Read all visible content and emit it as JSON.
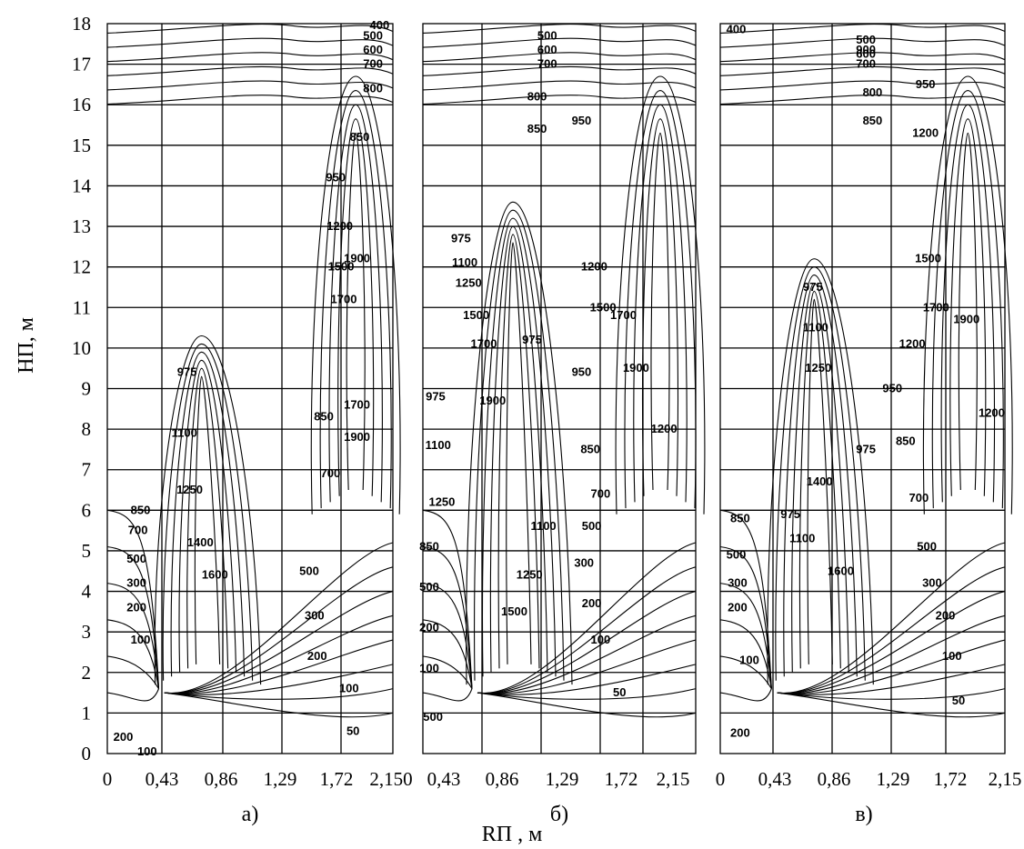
{
  "chart_data": {
    "type": "contour",
    "ylabel": "HП, м",
    "xlabel": "RП , м",
    "y_ticks": [
      "0",
      "1",
      "2",
      "3",
      "4",
      "5",
      "6",
      "7",
      "8",
      "9",
      "10",
      "11",
      "12",
      "13",
      "14",
      "15",
      "16",
      "17",
      "18"
    ],
    "ylim": [
      0,
      18
    ],
    "xlim": [
      0,
      2.15
    ],
    "panels": [
      {
        "label": "а)",
        "x_ticks": [
          "0",
          "0,43",
          "0,86",
          "1,29",
          "1,72",
          "2,150"
        ],
        "contour_labels": [
          {
            "text": "400",
            "x": 2.05,
            "y": 17.95
          },
          {
            "text": "500",
            "x": 2.0,
            "y": 17.7
          },
          {
            "text": "600",
            "x": 2.0,
            "y": 17.35
          },
          {
            "text": "700",
            "x": 2.0,
            "y": 17.0
          },
          {
            "text": "800",
            "x": 2.0,
            "y": 16.4
          },
          {
            "text": "850",
            "x": 1.9,
            "y": 15.2
          },
          {
            "text": "950",
            "x": 1.72,
            "y": 14.2
          },
          {
            "text": "1200",
            "x": 1.75,
            "y": 13.0
          },
          {
            "text": "1500",
            "x": 1.76,
            "y": 12.0
          },
          {
            "text": "1700",
            "x": 1.78,
            "y": 11.2
          },
          {
            "text": "1900",
            "x": 1.88,
            "y": 12.2
          },
          {
            "text": "1700",
            "x": 1.88,
            "y": 8.6
          },
          {
            "text": "1900",
            "x": 1.88,
            "y": 7.8
          },
          {
            "text": "850",
            "x": 1.63,
            "y": 8.3
          },
          {
            "text": "700",
            "x": 1.68,
            "y": 6.9
          },
          {
            "text": "500",
            "x": 1.52,
            "y": 4.5
          },
          {
            "text": "300",
            "x": 1.56,
            "y": 3.4
          },
          {
            "text": "200",
            "x": 1.58,
            "y": 2.4
          },
          {
            "text": "100",
            "x": 1.82,
            "y": 1.6
          },
          {
            "text": "50",
            "x": 1.85,
            "y": 0.55
          },
          {
            "text": "975",
            "x": 0.6,
            "y": 9.4
          },
          {
            "text": "1100",
            "x": 0.58,
            "y": 7.9
          },
          {
            "text": "1250",
            "x": 0.62,
            "y": 6.5
          },
          {
            "text": "1400",
            "x": 0.7,
            "y": 5.2
          },
          {
            "text": "1600",
            "x": 0.81,
            "y": 4.4
          },
          {
            "text": "850",
            "x": 0.25,
            "y": 6.0
          },
          {
            "text": "700",
            "x": 0.23,
            "y": 5.5
          },
          {
            "text": "500",
            "x": 0.22,
            "y": 4.8
          },
          {
            "text": "300",
            "x": 0.22,
            "y": 4.2
          },
          {
            "text": "200",
            "x": 0.22,
            "y": 3.6
          },
          {
            "text": "100",
            "x": 0.25,
            "y": 2.8
          },
          {
            "text": "200",
            "x": 0.12,
            "y": 0.4
          },
          {
            "text": "100",
            "x": 0.3,
            "y": 0.05
          }
        ]
      },
      {
        "label": "б)",
        "x_ticks": [
          "0,43",
          "0,86",
          "1,29",
          "1,72",
          "2,15"
        ],
        "contour_labels": [
          {
            "text": "500",
            "x": 0.98,
            "y": 17.7
          },
          {
            "text": "600",
            "x": 0.98,
            "y": 17.35
          },
          {
            "text": "700",
            "x": 0.98,
            "y": 17.0
          },
          {
            "text": "800",
            "x": 0.9,
            "y": 16.2
          },
          {
            "text": "850",
            "x": 0.9,
            "y": 15.4
          },
          {
            "text": "950",
            "x": 1.25,
            "y": 15.6
          },
          {
            "text": "975",
            "x": 0.3,
            "y": 12.7
          },
          {
            "text": "1100",
            "x": 0.33,
            "y": 12.1
          },
          {
            "text": "1250",
            "x": 0.36,
            "y": 11.6
          },
          {
            "text": "1500",
            "x": 0.42,
            "y": 10.8
          },
          {
            "text": "1700",
            "x": 0.48,
            "y": 10.1
          },
          {
            "text": "1900",
            "x": 0.55,
            "y": 8.7
          },
          {
            "text": "975",
            "x": 0.86,
            "y": 10.2
          },
          {
            "text": "975",
            "x": 0.1,
            "y": 8.8
          },
          {
            "text": "1100",
            "x": 0.12,
            "y": 7.6
          },
          {
            "text": "1250",
            "x": 0.15,
            "y": 6.2
          },
          {
            "text": "1100",
            "x": 0.95,
            "y": 5.6
          },
          {
            "text": "1250",
            "x": 0.84,
            "y": 4.4
          },
          {
            "text": "1500",
            "x": 0.72,
            "y": 3.5
          },
          {
            "text": "1200",
            "x": 1.35,
            "y": 12.0
          },
          {
            "text": "1500",
            "x": 1.42,
            "y": 11.0
          },
          {
            "text": "1700",
            "x": 1.58,
            "y": 10.8
          },
          {
            "text": "1900",
            "x": 1.68,
            "y": 9.5
          },
          {
            "text": "950",
            "x": 1.25,
            "y": 9.4
          },
          {
            "text": "1200",
            "x": 1.9,
            "y": 8.0
          },
          {
            "text": "850",
            "x": 1.32,
            "y": 7.5
          },
          {
            "text": "700",
            "x": 1.4,
            "y": 6.4
          },
          {
            "text": "500",
            "x": 1.33,
            "y": 5.6
          },
          {
            "text": "300",
            "x": 1.27,
            "y": 4.7
          },
          {
            "text": "200",
            "x": 1.33,
            "y": 3.7
          },
          {
            "text": "100",
            "x": 1.4,
            "y": 2.8
          },
          {
            "text": "50",
            "x": 1.55,
            "y": 1.5
          },
          {
            "text": "850",
            "x": 0.05,
            "y": 5.1
          },
          {
            "text": "500",
            "x": 0.05,
            "y": 4.1
          },
          {
            "text": "200",
            "x": 0.05,
            "y": 3.1
          },
          {
            "text": "100",
            "x": 0.05,
            "y": 2.1
          },
          {
            "text": "500",
            "x": 0.08,
            "y": 0.9
          }
        ]
      },
      {
        "label": "в)",
        "x_ticks": [
          "0",
          "0,43",
          "0,86",
          "1,29",
          "1,72",
          "2,15"
        ],
        "contour_labels": [
          {
            "text": "400",
            "x": 0.12,
            "y": 17.85
          },
          {
            "text": "500",
            "x": 1.1,
            "y": 17.6
          },
          {
            "text": "600",
            "x": 1.1,
            "y": 17.25
          },
          {
            "text": "900",
            "x": 1.1,
            "y": 17.35
          },
          {
            "text": "700",
            "x": 1.1,
            "y": 17.0
          },
          {
            "text": "800",
            "x": 1.15,
            "y": 16.3
          },
          {
            "text": "850",
            "x": 1.15,
            "y": 15.6
          },
          {
            "text": "950",
            "x": 1.55,
            "y": 16.5
          },
          {
            "text": "1200",
            "x": 1.55,
            "y": 15.3
          },
          {
            "text": "975",
            "x": 0.7,
            "y": 11.5
          },
          {
            "text": "1100",
            "x": 0.72,
            "y": 10.5
          },
          {
            "text": "1250",
            "x": 0.74,
            "y": 9.5
          },
          {
            "text": "1500",
            "x": 1.57,
            "y": 12.2
          },
          {
            "text": "1700",
            "x": 1.63,
            "y": 11.0
          },
          {
            "text": "1900",
            "x": 1.86,
            "y": 10.7
          },
          {
            "text": "1200",
            "x": 1.45,
            "y": 10.1
          },
          {
            "text": "950",
            "x": 1.3,
            "y": 9.0
          },
          {
            "text": "1200",
            "x": 2.05,
            "y": 8.4
          },
          {
            "text": "975",
            "x": 1.1,
            "y": 7.5
          },
          {
            "text": "850",
            "x": 1.4,
            "y": 7.7
          },
          {
            "text": "700",
            "x": 1.5,
            "y": 6.3
          },
          {
            "text": "500",
            "x": 1.56,
            "y": 5.1
          },
          {
            "text": "300",
            "x": 1.6,
            "y": 4.2
          },
          {
            "text": "200",
            "x": 1.7,
            "y": 3.4
          },
          {
            "text": "100",
            "x": 1.75,
            "y": 2.4
          },
          {
            "text": "50",
            "x": 1.8,
            "y": 1.3
          },
          {
            "text": "975",
            "x": 0.53,
            "y": 5.9
          },
          {
            "text": "1100",
            "x": 0.62,
            "y": 5.3
          },
          {
            "text": "1400",
            "x": 0.75,
            "y": 6.7
          },
          {
            "text": "1600",
            "x": 0.91,
            "y": 4.5
          },
          {
            "text": "850",
            "x": 0.15,
            "y": 5.8
          },
          {
            "text": "500",
            "x": 0.12,
            "y": 4.9
          },
          {
            "text": "300",
            "x": 0.13,
            "y": 4.2
          },
          {
            "text": "200",
            "x": 0.13,
            "y": 3.6
          },
          {
            "text": "100",
            "x": 0.22,
            "y": 2.3
          },
          {
            "text": "200",
            "x": 0.15,
            "y": 0.5
          }
        ]
      }
    ]
  }
}
